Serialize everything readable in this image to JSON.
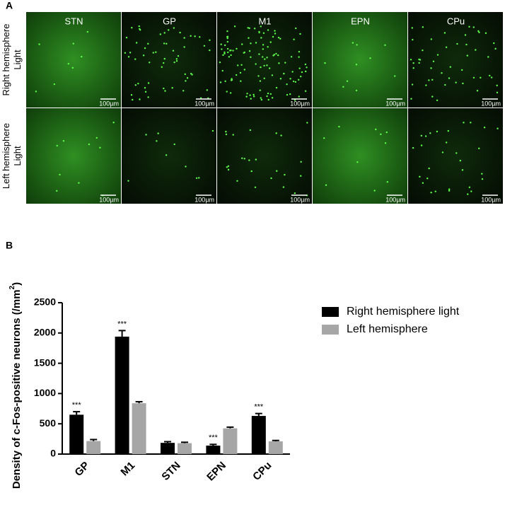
{
  "panel_a": {
    "label": "A",
    "columns": [
      "STN",
      "GP",
      "M1",
      "EPN",
      "CPu"
    ],
    "rows": [
      {
        "label_lines": [
          "Right hemisphere",
          "Light"
        ]
      },
      {
        "label_lines": [
          "Left hemisphere",
          "Light"
        ]
      }
    ],
    "scale_bar": "100µm"
  },
  "panel_b_label": "B",
  "chart_data": {
    "type": "bar",
    "y_label": {
      "text": "Density of c-Fos-positive neurons (/mm",
      "superscript": "2",
      "suffix": ")"
    },
    "categories": [
      "GP",
      "M1",
      "STN",
      "EPN",
      "CPu"
    ],
    "series": [
      {
        "name": "Right hemisphere light",
        "color": "#000000",
        "values": [
          650,
          1940,
          185,
          140,
          630
        ],
        "errors": [
          50,
          100,
          20,
          20,
          40
        ]
      },
      {
        "name": "Left hemisphere",
        "color": "#a6a6a6",
        "values": [
          215,
          840,
          180,
          425,
          210
        ],
        "errors": [
          25,
          25,
          15,
          20,
          15
        ]
      }
    ],
    "significance": [
      "***",
      "***",
      null,
      "***",
      "***"
    ],
    "ylim": [
      0,
      2500
    ],
    "yticks": [
      0,
      500,
      1000,
      1500,
      2000,
      2500
    ],
    "legend": "right",
    "grid": false
  }
}
